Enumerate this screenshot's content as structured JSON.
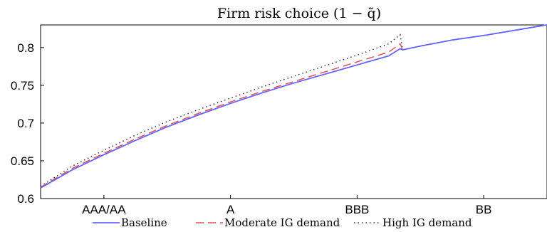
{
  "chart_data": {
    "type": "line",
    "title": "Firm risk choice (1 − q̃)",
    "xlabel": "",
    "ylabel": "",
    "xlim": [
      0,
      4
    ],
    "ylim": [
      0.6,
      0.83
    ],
    "yticks": [
      0.6,
      0.65,
      0.7,
      0.75,
      0.8
    ],
    "ytick_labels": [
      "0.6",
      "0.65",
      "0.7",
      "0.75",
      "0.8"
    ],
    "xticks": [
      0.5,
      1.5,
      2.5,
      3.5
    ],
    "xtick_labels": [
      "AAA/AA",
      "A",
      "BBB",
      "BB"
    ],
    "grid": false,
    "legend_position": "bottom",
    "series": [
      {
        "name": "Baseline",
        "color": "#6666ff",
        "style": "solid",
        "x": [
          0.0,
          0.25,
          0.5,
          0.75,
          1.0,
          1.25,
          1.5,
          1.75,
          2.0,
          2.25,
          2.5,
          2.75,
          2.84,
          2.86,
          3.0,
          3.25,
          3.5,
          3.75,
          4.0
        ],
        "y": [
          0.614,
          0.638,
          0.658,
          0.677,
          0.695,
          0.711,
          0.726,
          0.74,
          0.753,
          0.765,
          0.777,
          0.789,
          0.7985,
          0.797,
          0.802,
          0.81,
          0.816,
          0.823,
          0.83
        ]
      },
      {
        "name": "Moderate IG demand",
        "color": "#e05555",
        "style": "dashed",
        "x": [
          0.0,
          0.25,
          0.5,
          0.75,
          1.0,
          1.25,
          1.5,
          1.75,
          2.0,
          2.25,
          2.5,
          2.75,
          2.84,
          2.86,
          3.0,
          3.25,
          3.5,
          3.75,
          4.0
        ],
        "y": [
          0.615,
          0.64,
          0.66,
          0.679,
          0.697,
          0.713,
          0.728,
          0.742,
          0.755,
          0.768,
          0.781,
          0.794,
          0.805,
          0.797,
          0.802,
          0.81,
          0.816,
          0.823,
          0.83
        ]
      },
      {
        "name": "High IG demand",
        "color": "#333333",
        "style": "dotted",
        "x": [
          0.0,
          0.25,
          0.5,
          0.75,
          1.0,
          1.25,
          1.5,
          1.75,
          2.0,
          2.25,
          2.5,
          2.75,
          2.84,
          2.86,
          3.0,
          3.25,
          3.5,
          3.75,
          4.0
        ],
        "y": [
          0.616,
          0.643,
          0.664,
          0.684,
          0.702,
          0.718,
          0.733,
          0.748,
          0.762,
          0.776,
          0.79,
          0.805,
          0.817,
          0.797,
          0.802,
          0.81,
          0.816,
          0.823,
          0.83
        ]
      }
    ]
  }
}
